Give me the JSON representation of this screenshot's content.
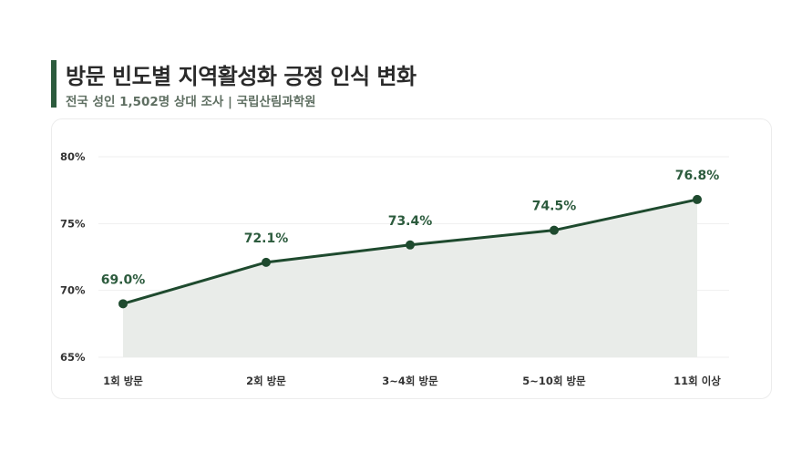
{
  "header": {
    "title": "방문 빈도별 지역활성화 긍정 인식 변화",
    "subtitle": "전국 성인 1,502명 상대 조사 | 국립산림과학원"
  },
  "colors": {
    "accent": "#2c5b3d",
    "line": "#1e4a2e",
    "area": "#e9ece9",
    "grid": "#efefef"
  },
  "chart_data": {
    "type": "area",
    "categories": [
      "1회 방문",
      "2회 방문",
      "3~4회 방문",
      "5~10회 방문",
      "11회 이상"
    ],
    "values": [
      69.0,
      72.1,
      73.4,
      74.5,
      76.8
    ],
    "data_labels": [
      "69.0%",
      "72.1%",
      "73.4%",
      "74.5%",
      "76.8%"
    ],
    "y_ticks": [
      "65%",
      "70%",
      "75%",
      "80%"
    ],
    "y_tick_values": [
      65,
      70,
      75,
      80
    ],
    "ylim": [
      65,
      80
    ],
    "grid": true,
    "legend": "none"
  }
}
